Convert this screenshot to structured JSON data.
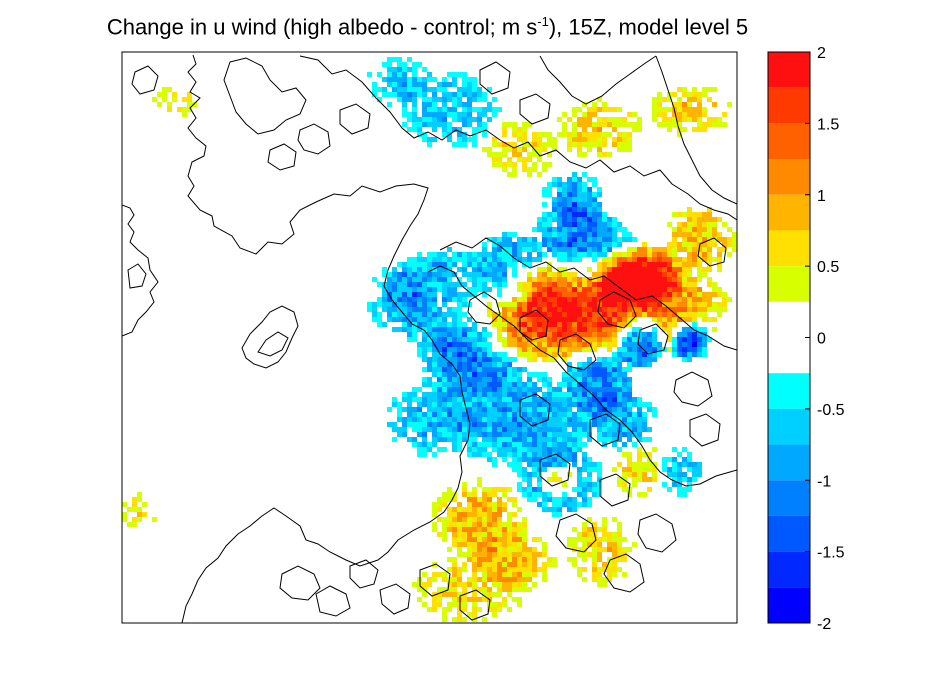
{
  "title": {
    "pre": "Change in u wind (high albedo - control; m s",
    "sup": "-1",
    "post": "), 15Z, model level 5"
  },
  "chart_data": {
    "type": "heatmap",
    "title": "Change in u wind (high albedo - control; m s-1), 15Z, model level 5",
    "xlabel": "",
    "ylabel": "",
    "grid": false,
    "colorbar": {
      "range": [
        -2,
        2
      ],
      "tick_labels": [
        "2",
        "1.5",
        "1",
        "0.5",
        "0",
        "-0.5",
        "-1",
        "-1.5",
        "-2"
      ],
      "levels": [
        {
          "from": 1.75,
          "to": 2.0,
          "color": "#ff1010"
        },
        {
          "from": 1.5,
          "to": 1.75,
          "color": "#ff3a00"
        },
        {
          "from": 1.25,
          "to": 1.5,
          "color": "#ff6000"
        },
        {
          "from": 1.0,
          "to": 1.25,
          "color": "#ff8a00"
        },
        {
          "from": 0.75,
          "to": 1.0,
          "color": "#ffb400"
        },
        {
          "from": 0.5,
          "to": 0.75,
          "color": "#ffe000"
        },
        {
          "from": 0.25,
          "to": 0.5,
          "color": "#d8ff00"
        },
        {
          "from": -0.25,
          "to": 0.25,
          "color": "#ffffff"
        },
        {
          "from": -0.5,
          "to": -0.25,
          "color": "#00ffff"
        },
        {
          "from": -0.75,
          "to": -0.5,
          "color": "#00d0ff"
        },
        {
          "from": -1.0,
          "to": -0.75,
          "color": "#00a8ff"
        },
        {
          "from": -1.25,
          "to": -1.0,
          "color": "#0080ff"
        },
        {
          "from": -1.5,
          "to": -1.25,
          "color": "#0058ff"
        },
        {
          "from": -1.75,
          "to": -1.5,
          "color": "#0028ff"
        },
        {
          "from": -2.0,
          "to": -1.75,
          "color": "#0000ff"
        }
      ]
    },
    "colors": {
      "frame": "#000000",
      "contour": "#000000",
      "background": "#ffffff"
    }
  }
}
